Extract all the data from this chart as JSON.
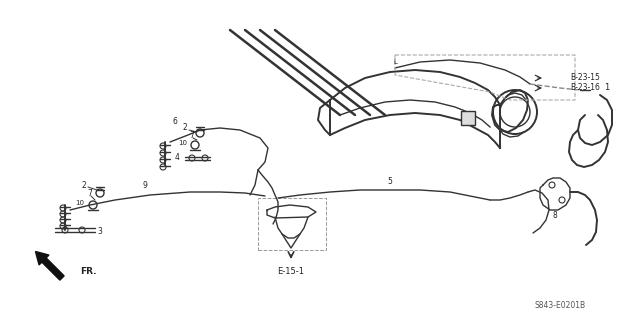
{
  "bg_color": "#ffffff",
  "line_color": "#333333",
  "part_number": "S843-E0201B",
  "ref_labels": [
    "B-23-15",
    "B-23-16"
  ],
  "arrow_label": "E-15-1",
  "fr_label": "FR.",
  "fig_width": 6.4,
  "fig_height": 3.19,
  "dpi": 100
}
